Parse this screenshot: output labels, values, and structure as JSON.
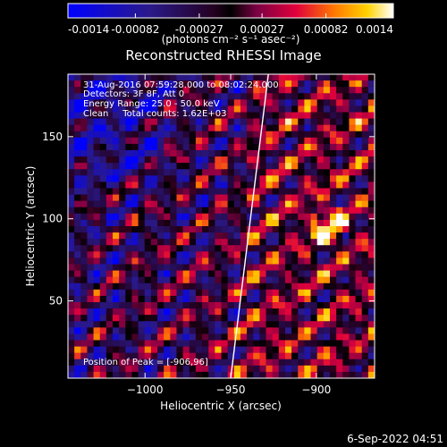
{
  "colorbar": {
    "tick_labels": [
      "-0.0014",
      "-0.00082",
      "-0.00027",
      "0.00027",
      "0.00082",
      "0.0014"
    ],
    "tick_values": [
      -0.0014,
      -0.00082,
      -0.00027,
      0.00027,
      0.00082,
      0.0014
    ],
    "range": [
      -0.0014,
      0.0014
    ],
    "units_label": "(photons cm⁻² s⁻¹ asec⁻²)"
  },
  "chart_data": {
    "type": "heatmap",
    "title": "Reconstructed RHESSI Image",
    "xlabel": "Heliocentric X (arcsec)",
    "ylabel": "Heliocentric Y (arcsec)",
    "xlim": [
      -1045,
      -866
    ],
    "ylim": [
      3,
      188
    ],
    "x_ticks": [
      -1000,
      -950,
      -900
    ],
    "x_tick_labels": [
      "−1000",
      "−950",
      "−900"
    ],
    "y_ticks": [
      50,
      100,
      150
    ],
    "y_tick_labels": [
      "50",
      "100",
      "150"
    ],
    "limb_line": {
      "x": [
        -950,
        -928
      ],
      "y": [
        3,
        188
      ]
    },
    "annotations": [
      "31-Aug-2016 07:59:28.000 to 08:02:24.000",
      "Detectors: 3F 8F, Att 0",
      "Energy Range: 25.0 - 50.0 keV",
      "Clean     Total counts: 1.62E+03",
      "Position of Peak = [-906,96]"
    ],
    "peak": {
      "x": -906,
      "y": 96
    }
  },
  "footer": {
    "timestamp": "6-Sep-2022 04:51"
  }
}
